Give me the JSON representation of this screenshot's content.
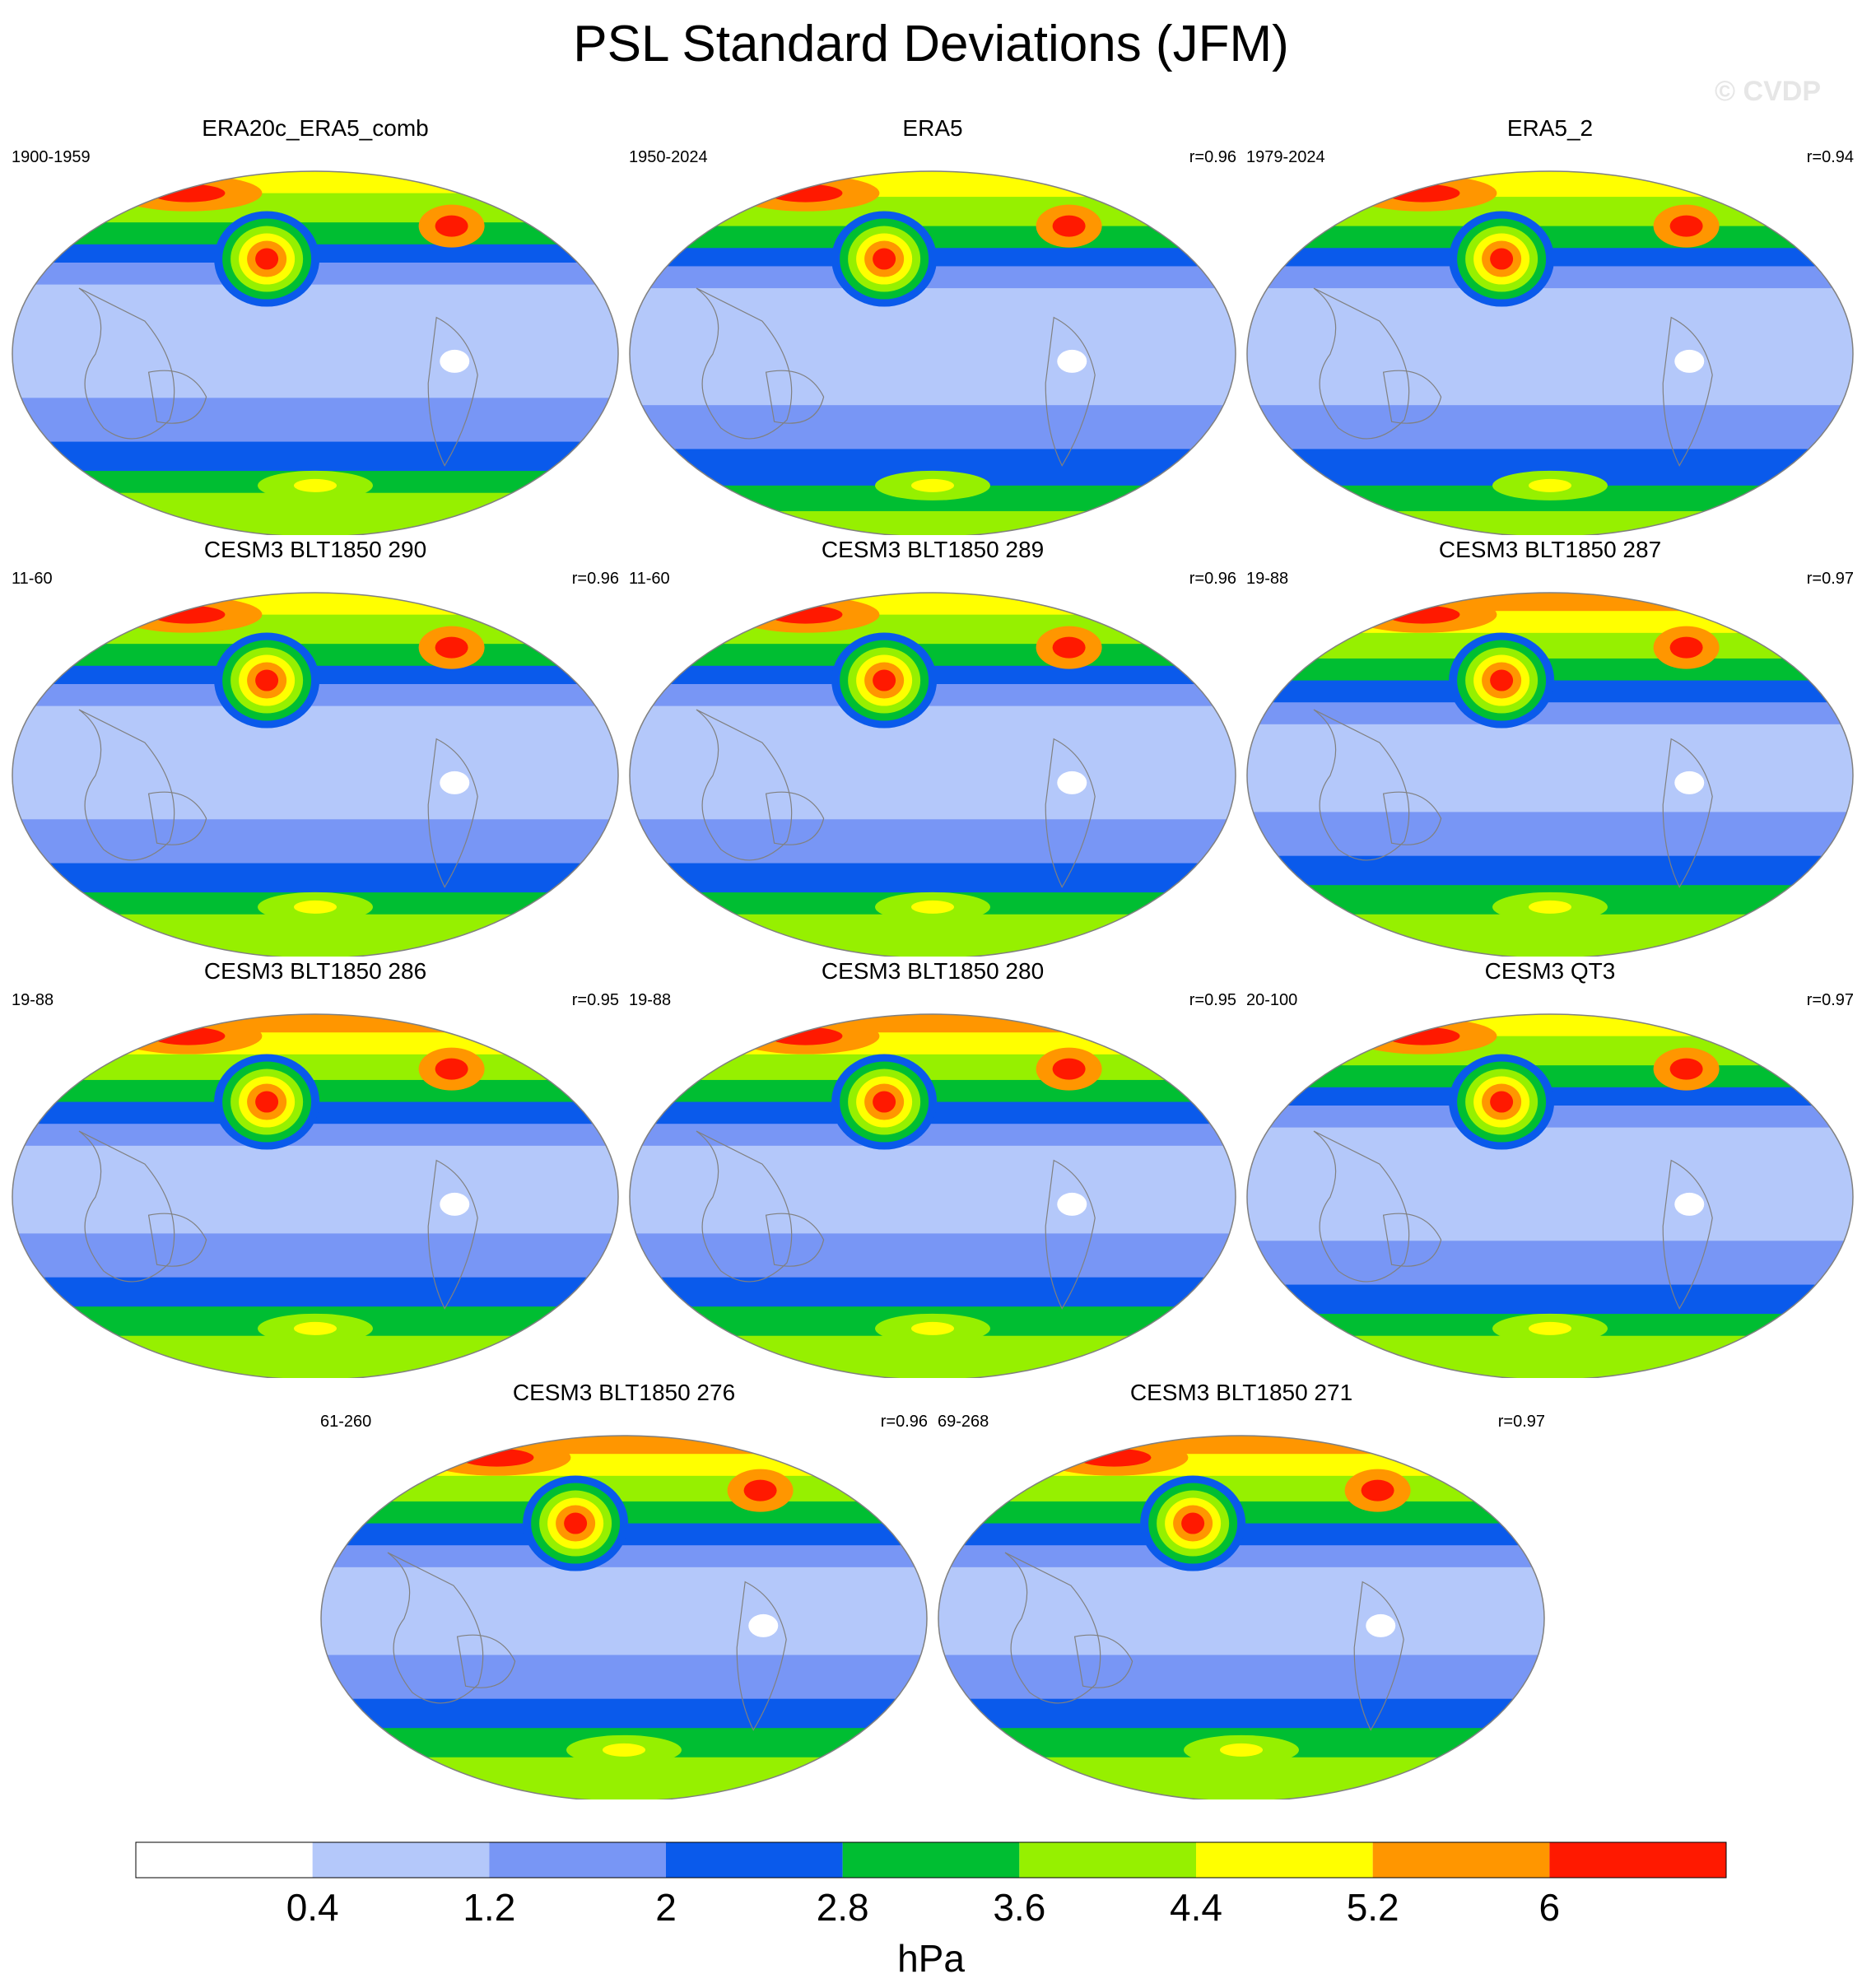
{
  "title": "PSL Standard Deviations (JFM)",
  "watermark": "© CVDP",
  "colorbar": {
    "levels": [
      "0.4",
      "1.2",
      "2",
      "2.8",
      "3.6",
      "4.4",
      "5.2",
      "6"
    ],
    "colors": [
      "#ffffff",
      "#b4c8fa",
      "#7896f5",
      "#0a5aeb",
      "#00be32",
      "#96f000",
      "#ffff00",
      "#ff9600",
      "#ff1900"
    ],
    "unit": "hPa"
  },
  "colors": {
    "land_outline": "#808080",
    "map_border": "#808080"
  },
  "panels": [
    {
      "title": "ERA20c_ERA5_comb",
      "period": "1900-1959",
      "corr": ""
    },
    {
      "title": "ERA5",
      "period": "1950-2024",
      "corr": "r=0.96"
    },
    {
      "title": "ERA5_2",
      "period": "1979-2024",
      "corr": "r=0.94"
    },
    {
      "title": "CESM3 BLT1850 290",
      "period": "11-60",
      "corr": "r=0.96"
    },
    {
      "title": "CESM3 BLT1850 289",
      "period": "11-60",
      "corr": "r=0.96"
    },
    {
      "title": "CESM3 BLT1850 287",
      "period": "19-88",
      "corr": "r=0.97"
    },
    {
      "title": "CESM3 BLT1850 286",
      "period": "19-88",
      "corr": "r=0.95"
    },
    {
      "title": "CESM3 BLT1850 280",
      "period": "19-88",
      "corr": "r=0.95"
    },
    {
      "title": "CESM3 QT3",
      "period": "20-100",
      "corr": "r=0.97"
    },
    {
      "title": "CESM3 BLT1850 276",
      "period": "61-260",
      "corr": "r=0.96"
    },
    {
      "title": "CESM3 BLT1850 271",
      "period": "69-268",
      "corr": "r=0.97"
    }
  ]
}
